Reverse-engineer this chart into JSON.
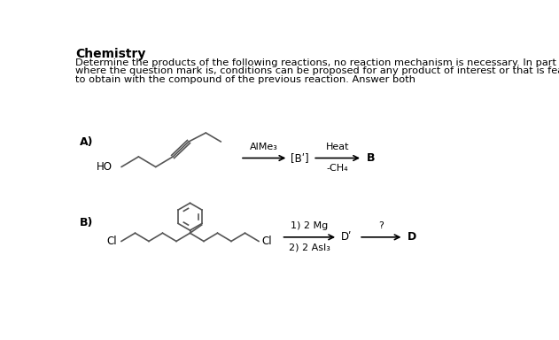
{
  "title": "Chemistry",
  "intro_line1": "Determine the products of the following reactions, no reaction mechanism is necessary. In part b),",
  "intro_line2": "where the question mark is, conditions can be proposed for any product of interest or that is feasible",
  "intro_line3": "to obtain with the compound of the previous reaction. Answer both",
  "background_color": "#ffffff",
  "text_color": "#000000",
  "mol_color": "#555555",
  "part_a_label": "A)",
  "part_b_label": "B)",
  "reaction_a": {
    "reagent_above_arrow1": "AlMe₃",
    "product_intermediate": "[Bʹ]",
    "reagent_above_arrow2": "Heat",
    "reagent_below_arrow2": "-CH₄",
    "product": "B"
  },
  "reaction_b": {
    "reagent_line1": "1) 2 Mg",
    "reagent_line2": "2) 2 AsI₃",
    "product_intermediate": "Dʹ",
    "condition": "?",
    "product": "D"
  },
  "ho_label": "HO",
  "cl_left": "Cl",
  "cl_right": "Cl",
  "title_fontsize": 10,
  "body_fontsize": 8.2,
  "label_fontsize": 9,
  "mol_lw": 1.2
}
